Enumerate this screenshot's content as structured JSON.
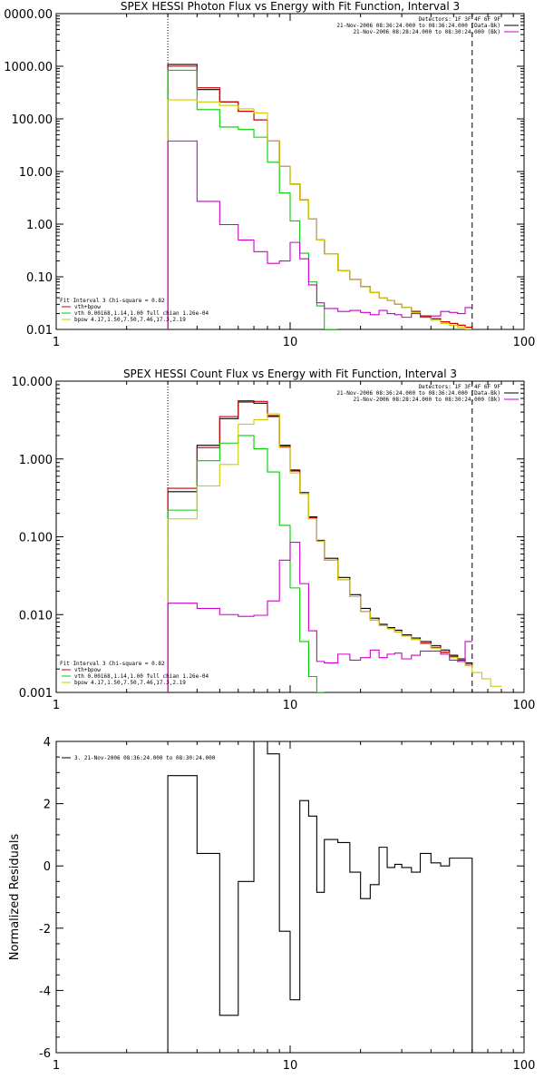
{
  "colors": {
    "axis": "#000000",
    "data": "#000000",
    "vth_bpow": "#cc0000",
    "vth": "#00cc00",
    "bpow": "#cccc00",
    "bk": "#cc00cc"
  },
  "chart_data": [
    {
      "type": "line",
      "title": "SPEX HESSI Photon Flux vs Energy with Fit Function, Interval 3",
      "xscale": "log",
      "yscale": "log",
      "xlim": [
        1,
        100
      ],
      "ylim": [
        0.01,
        10000
      ],
      "x_ticks": [
        "1",
        "10",
        "100"
      ],
      "y_ticks": [
        "0.01",
        "0.10",
        "1.00",
        "10.00",
        "100.00",
        "1000.00",
        "0000.00"
      ],
      "vlines": [
        {
          "x": 3,
          "style": "dotted"
        },
        {
          "x": 60,
          "style": "dashed"
        }
      ],
      "legend_right": [
        "Detectors: 1F 3F 4F 6F 9F",
        "21-Nov-2006 08:36:24.000 to 08:36:24.000 (Data-Bk)",
        "21-Nov-2006 08:28:24.000 to 08:30:24.000 (Bk)"
      ],
      "legend_left": [
        "Fit Interval 3   Chi-square = 0.82",
        "vth+bpow",
        "vth 0.00168,1.14,1.00  full chian 1.26e-04",
        "bpow 4.17,1.50,7.50,7.46,17.3,2.19"
      ],
      "bin_edges": [
        3,
        4,
        5,
        6,
        7,
        8,
        9,
        10,
        11,
        12,
        13,
        14,
        16,
        18,
        20,
        22,
        24,
        26,
        28,
        30,
        33,
        36,
        40,
        44,
        48,
        52,
        56,
        60
      ],
      "series": [
        {
          "name": "Data-Bk",
          "color": "#000000",
          "values": [
            1080,
            360,
            210,
            140,
            96,
            38,
            12.5,
            5.8,
            2.9,
            1.25,
            0.5,
            0.27,
            0.13,
            0.09,
            0.065,
            0.05,
            0.04,
            0.035,
            0.03,
            0.026,
            0.022,
            0.018,
            0.016,
            0.014,
            0.013,
            0.012,
            0.011
          ]
        },
        {
          "name": "vth+bpow",
          "color": "#cc0000",
          "values": [
            1000,
            390,
            210,
            140,
            96,
            38,
            12.5,
            5.8,
            2.9,
            1.25,
            0.5,
            0.27,
            0.13,
            0.09,
            0.065,
            0.05,
            0.04,
            0.035,
            0.03,
            0.026,
            0.022,
            0.018,
            0.016,
            0.014,
            0.013,
            0.012,
            0.011
          ]
        },
        {
          "name": "vth",
          "color": "#00cc00",
          "values": [
            840,
            150,
            70,
            63,
            45,
            15,
            3.9,
            1.15,
            0.28,
            0.08,
            0.028,
            0.01
          ]
        },
        {
          "name": "bpow",
          "color": "#cccc00",
          "values": [
            230,
            210,
            180,
            155,
            130,
            38,
            12.5,
            5.8,
            2.9,
            1.25,
            0.5,
            0.27,
            0.13,
            0.09,
            0.065,
            0.05,
            0.04,
            0.035,
            0.03,
            0.026,
            0.021,
            0.017,
            0.015,
            0.013,
            0.012,
            0.011,
            0.01
          ]
        },
        {
          "name": "Bk",
          "color": "#cc00cc",
          "values": [
            38,
            2.7,
            0.98,
            0.5,
            0.3,
            0.18,
            0.2,
            0.45,
            0.22,
            0.07,
            0.032,
            0.025,
            0.022,
            0.023,
            0.021,
            0.019,
            0.023,
            0.02,
            0.019,
            0.017,
            0.02,
            0.017,
            0.018,
            0.022,
            0.021,
            0.02,
            0.026
          ]
        }
      ]
    },
    {
      "type": "line",
      "title": "SPEX HESSI Count Flux vs Energy with Fit Function, Interval 3",
      "xscale": "log",
      "yscale": "log",
      "xlim": [
        1,
        100
      ],
      "ylim": [
        0.001,
        10
      ],
      "x_ticks": [
        "1",
        "10",
        "100"
      ],
      "y_ticks": [
        "0.001",
        "0.010",
        "0.100",
        "1.000",
        "10.000"
      ],
      "vlines": [
        {
          "x": 3,
          "style": "dotted"
        },
        {
          "x": 60,
          "style": "dashed"
        }
      ],
      "legend_right": [
        "Detectors: 1F 3F 4F 6F 9F",
        "21-Nov-2006 08:36:24.000 to 08:36:24.000 (Data-Bk)",
        "21-Nov-2006 08:28:24.000 to 08:30:24.000 (Bk)"
      ],
      "legend_left": [
        "Fit Interval 3   Chi-square = 0.82",
        "vth+bpow",
        "vth 0.00168,1.14,1.00  full chian 1.26e-04",
        "bpow 4.17,1.50,7.50,7.46,17.3,2.19"
      ],
      "bin_edges": [
        3,
        4,
        5,
        6,
        7,
        8,
        9,
        10,
        11,
        12,
        13,
        14,
        16,
        18,
        20,
        22,
        24,
        26,
        28,
        30,
        33,
        36,
        40,
        44,
        48,
        52,
        56,
        60,
        66,
        72,
        80
      ],
      "series": [
        {
          "name": "Data-Bk",
          "color": "#000000",
          "values": [
            0.38,
            1.5,
            3.3,
            5.4,
            5.2,
            3.6,
            1.5,
            0.72,
            0.37,
            0.18,
            0.09,
            0.053,
            0.03,
            0.018,
            0.012,
            0.009,
            0.0075,
            0.0068,
            0.0063,
            0.0055,
            0.005,
            0.0045,
            0.004,
            0.0035,
            0.003,
            0.0027,
            0.0024
          ]
        },
        {
          "name": "vth+bpow",
          "color": "#cc0000",
          "values": [
            0.42,
            1.4,
            3.5,
            5.6,
            5.5,
            3.5,
            1.45,
            0.7,
            0.36,
            0.175,
            0.088,
            0.05,
            0.028,
            0.017,
            0.011,
            0.0085,
            0.0072,
            0.0066,
            0.006,
            0.0053,
            0.0048,
            0.0043,
            0.0038,
            0.0033,
            0.0029,
            0.0026,
            0.0023
          ]
        },
        {
          "name": "vth",
          "color": "#00cc00",
          "values": [
            0.22,
            0.95,
            1.6,
            2.0,
            1.35,
            0.68,
            0.14,
            0.022,
            0.0045,
            0.0016,
            0.001
          ]
        },
        {
          "name": "bpow",
          "color": "#cccc00",
          "values": [
            0.17,
            0.45,
            0.85,
            2.8,
            3.2,
            3.8,
            1.4,
            0.66,
            0.36,
            0.17,
            0.088,
            0.05,
            0.028,
            0.017,
            0.011,
            0.0085,
            0.0072,
            0.0066,
            0.006,
            0.0053,
            0.0048,
            0.0042,
            0.0037,
            0.0032,
            0.0028,
            0.0025,
            0.0022,
            0.0018,
            0.0015,
            0.0012
          ]
        },
        {
          "name": "Bk",
          "color": "#cc00cc",
          "values": [
            0.014,
            0.012,
            0.01,
            0.0095,
            0.0098,
            0.015,
            0.05,
            0.085,
            0.025,
            0.0062,
            0.0025,
            0.0024,
            0.0031,
            0.0026,
            0.0028,
            0.0035,
            0.0028,
            0.0031,
            0.0032,
            0.0027,
            0.003,
            0.0034,
            0.0034,
            0.0031,
            0.0026,
            0.0025,
            0.0045
          ]
        }
      ]
    },
    {
      "type": "line",
      "title": "",
      "ylabel": "Normalized Residuals",
      "xscale": "log",
      "yscale": "linear",
      "xlim": [
        1,
        100
      ],
      "ylim": [
        -6,
        4
      ],
      "x_ticks": [
        "1",
        "10",
        "100"
      ],
      "y_ticks": [
        "-6",
        "-4",
        "-2",
        "0",
        "2",
        "4"
      ],
      "legend_left": [
        "3. 21-Nov-2006 08:36:24.000 to 08:30:24.000"
      ],
      "bin_edges": [
        3,
        4,
        5,
        6,
        7,
        8,
        9,
        10,
        11,
        12,
        13,
        14,
        16,
        18,
        20,
        22,
        24,
        26,
        28,
        30,
        33,
        36,
        40,
        44,
        48,
        52,
        56,
        60
      ],
      "series": [
        {
          "name": "3. 21-Nov-2006 08:36:24.000 to 08:30:24.000",
          "color": "#000000",
          "values": [
            2.9,
            0.4,
            -4.8,
            -0.5,
            4.0,
            3.6,
            -2.1,
            -4.3,
            2.1,
            1.6,
            -0.85,
            0.85,
            0.75,
            -0.2,
            -1.05,
            -0.6,
            0.6,
            -0.05,
            0.05,
            -0.05,
            -0.2,
            0.4,
            0.1,
            0.0,
            0.25,
            0.25,
            0.25
          ]
        }
      ]
    }
  ]
}
